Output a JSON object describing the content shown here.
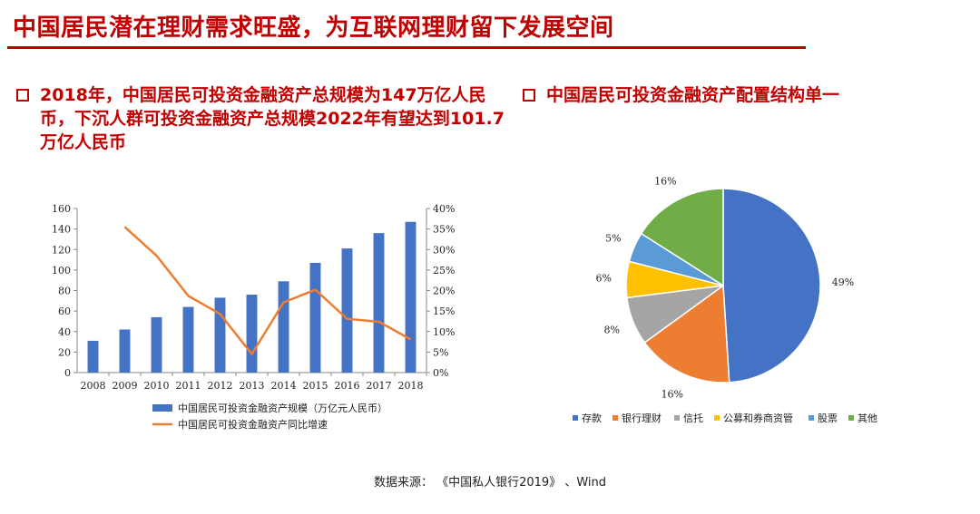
{
  "title": "中国居民潜在理财需求旺盛，为互联网理财留下发展空间",
  "left_bullet": "2018年，中国居民可投资金融资产总规模为147万亿人民币，下沉人群可投资金融资产总规模2022年有望达到101.7万亿人民币",
  "right_bullet": "中国居民可投资金融资产配置结构单一",
  "source": "数据来源：  《中国私人银行2019》  、Wind",
  "colors": {
    "accent_red": "#c00000",
    "bar_blue": "#4472c4",
    "line_orange": "#ed7d31"
  },
  "chart_data": [
    {
      "type": "bar",
      "categories": [
        "2008",
        "2009",
        "2010",
        "2011",
        "2012",
        "2013",
        "2014",
        "2015",
        "2016",
        "2017",
        "2018"
      ],
      "series": [
        {
          "name": "中国居民可投资金融资产规模（万亿元人民币）",
          "type": "bar",
          "axis": "left",
          "values": [
            31,
            42,
            54,
            64,
            73,
            76,
            89,
            107,
            121,
            136,
            147
          ]
        },
        {
          "name": "中国居民可投资金融资产同比增速",
          "type": "line",
          "axis": "right",
          "values": [
            null,
            0.355,
            0.285,
            0.187,
            0.143,
            0.045,
            0.171,
            0.202,
            0.131,
            0.124,
            0.081
          ]
        }
      ],
      "ylim_left": [
        0,
        160
      ],
      "yticks_left": [
        "0",
        "20",
        "40",
        "60",
        "80",
        "100",
        "120",
        "140",
        "160"
      ],
      "ylim_right": [
        0,
        0.4
      ],
      "yticks_right": [
        "0%",
        "5%",
        "10%",
        "15%",
        "20%",
        "25%",
        "30%",
        "35%",
        "40%"
      ],
      "legend_position": "bottom"
    },
    {
      "type": "pie",
      "categories": [
        "存款",
        "银行理财",
        "信托",
        "公募和券商资管",
        "股票",
        "其他"
      ],
      "values": [
        49,
        16,
        8,
        6,
        5,
        16
      ],
      "labels": [
        "49%",
        "16%",
        "8%",
        "6%",
        "5%",
        "16%"
      ],
      "colors": [
        "#4472c4",
        "#ed7d31",
        "#a5a5a5",
        "#ffc000",
        "#5b9bd5",
        "#70ad47"
      ],
      "legend_position": "bottom"
    }
  ]
}
